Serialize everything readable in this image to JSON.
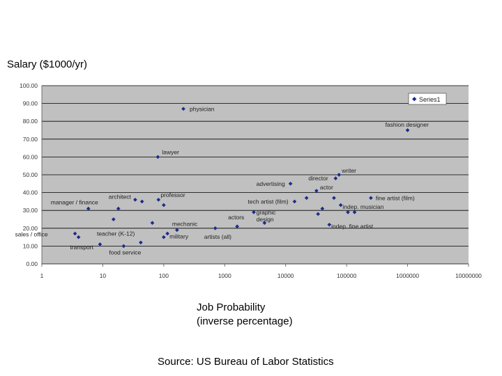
{
  "page": {
    "ylabel": "Salary ($1000/yr)",
    "xlabel_line1": "Job Probability",
    "xlabel_line2": "(inverse percentage)",
    "source": "Source: US Bureau of Labor Statistics"
  },
  "chart_data": {
    "type": "scatter",
    "title": "",
    "xlabel": "Job Probability (inverse percentage)",
    "ylabel": "Salary ($1000/yr)",
    "xscale": "log",
    "xlim": [
      1,
      10000000
    ],
    "ylim": [
      0,
      100
    ],
    "xtick_labels": [
      "1",
      "10",
      "100",
      "1000",
      "10000",
      "100000",
      "1000000",
      "10000000"
    ],
    "ytick_labels": [
      "0.00",
      "10.00",
      "20.00",
      "30.00",
      "40.00",
      "50.00",
      "60.00",
      "70.00",
      "80.00",
      "90.00",
      "100.00"
    ],
    "grid": true,
    "legend": "top-right",
    "series_name": "Series1",
    "marker_color": "#1f2a8c",
    "points": [
      {
        "x": 3.5,
        "y": 17,
        "label": "sales / office"
      },
      {
        "x": 5.8,
        "y": 31,
        "label": "manager / finance"
      },
      {
        "x": 4.0,
        "y": 15,
        "label": ""
      },
      {
        "x": 9.0,
        "y": 11,
        "label": "transport"
      },
      {
        "x": 15,
        "y": 25,
        "label": ""
      },
      {
        "x": 18,
        "y": 31,
        "label": "architect"
      },
      {
        "x": 22,
        "y": 10,
        "label": "food service"
      },
      {
        "x": 34,
        "y": 36,
        "label": ""
      },
      {
        "x": 42,
        "y": 12,
        "label": ""
      },
      {
        "x": 44,
        "y": 35,
        "label": ""
      },
      {
        "x": 65,
        "y": 23,
        "label": ""
      },
      {
        "x": 80,
        "y": 60,
        "label": "lawyer"
      },
      {
        "x": 82,
        "y": 36,
        "label": "professor"
      },
      {
        "x": 100,
        "y": 15,
        "label": ""
      },
      {
        "x": 100,
        "y": 33,
        "label": ""
      },
      {
        "x": 115,
        "y": 17,
        "label": "military"
      },
      {
        "x": 165,
        "y": 19,
        "label": "mechanic"
      },
      {
        "x": 210,
        "y": 87,
        "label": "physician"
      },
      {
        "x": 700,
        "y": 20,
        "label": "artists (all)"
      },
      {
        "x": 1600,
        "y": 21,
        "label": "actors"
      },
      {
        "x": 3000,
        "y": 29,
        "label": ""
      },
      {
        "x": 4500,
        "y": 23,
        "label": ""
      },
      {
        "x": 12000,
        "y": 45,
        "label": "advertising"
      },
      {
        "x": 14000,
        "y": 35,
        "label": ""
      },
      {
        "x": 22000,
        "y": 37,
        "label": ""
      },
      {
        "x": 32000,
        "y": 41,
        "label": "actor"
      },
      {
        "x": 34000,
        "y": 28,
        "label": ""
      },
      {
        "x": 40000,
        "y": 31,
        "label": ""
      },
      {
        "x": 52000,
        "y": 22,
        "label": ""
      },
      {
        "x": 62000,
        "y": 37,
        "label": ""
      },
      {
        "x": 66000,
        "y": 48,
        "label": "director"
      },
      {
        "x": 75000,
        "y": 50,
        "label": "writer"
      },
      {
        "x": 80000,
        "y": 33,
        "label": ""
      },
      {
        "x": 105000,
        "y": 29,
        "label": ""
      },
      {
        "x": 135000,
        "y": 29,
        "label": ""
      },
      {
        "x": 250000,
        "y": 37,
        "label": "fine artist (film)"
      },
      {
        "x": 1000000,
        "y": 75,
        "label": "fashion designer"
      }
    ],
    "annotations": [
      {
        "text": "teacher (K-12)",
        "x": 8,
        "y": 17
      },
      {
        "text": "tech artist (film)",
        "x": 2400,
        "y": 35
      },
      {
        "text": "graphic",
        "x": 3300,
        "y": 29
      },
      {
        "text": "design",
        "x": 3300,
        "y": 25
      },
      {
        "text": "indep. musician",
        "x": 86000,
        "y": 32
      },
      {
        "text": "indep. fine artist",
        "x": 56000,
        "y": 21
      }
    ]
  }
}
